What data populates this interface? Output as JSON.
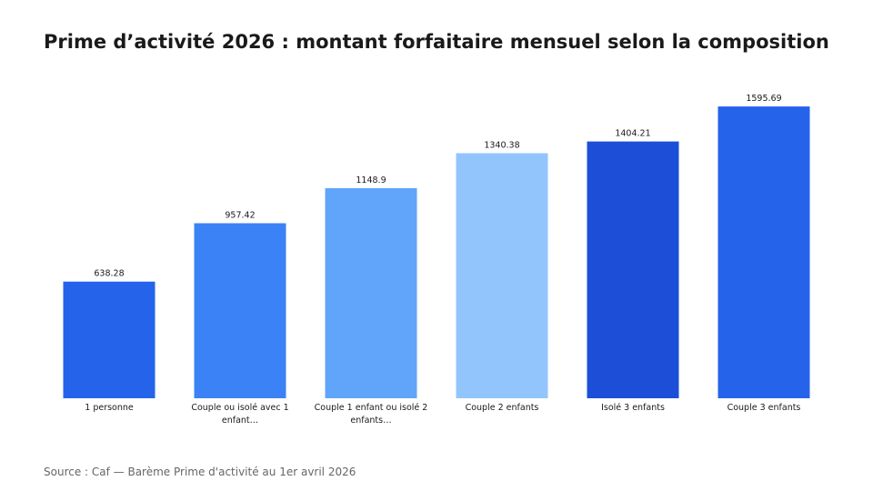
{
  "chart_data": {
    "type": "bar",
    "title": "Prime d’activité 2026 : montant forfaitaire mensuel selon la composition",
    "categories": [
      "1 personne",
      "Couple ou isolé avec 1 enfant…",
      "Couple 1 enfant ou isolé 2 enfants…",
      "Couple 2 enfants",
      "Isolé 3 enfants",
      "Couple 3 enfants"
    ],
    "category_lines": [
      [
        "1 personne"
      ],
      [
        "Couple ou isolé avec 1",
        "enfant…"
      ],
      [
        "Couple 1 enfant ou isolé 2",
        "enfants…"
      ],
      [
        "Couple 2 enfants"
      ],
      [
        "Isolé 3 enfants"
      ],
      [
        "Couple 3 enfants"
      ]
    ],
    "values": [
      638.28,
      957.42,
      1148.9,
      1340.38,
      1404.21,
      1595.69
    ],
    "value_labels": [
      "638.28",
      "957.42",
      "1148.9",
      "1340.38",
      "1404.21",
      "1595.69"
    ],
    "colors": [
      "#2563EB",
      "#3B82F6",
      "#60A5FA",
      "#93C5FD",
      "#1D4ED8",
      "#2563EB"
    ],
    "xlabel": "",
    "ylabel": "",
    "ylim": [
      0,
      1676
    ],
    "grid": false,
    "legend": "none"
  },
  "footer": {
    "source": "Source : Caf — Barème Prime d'activité au 1er avril 2026"
  }
}
